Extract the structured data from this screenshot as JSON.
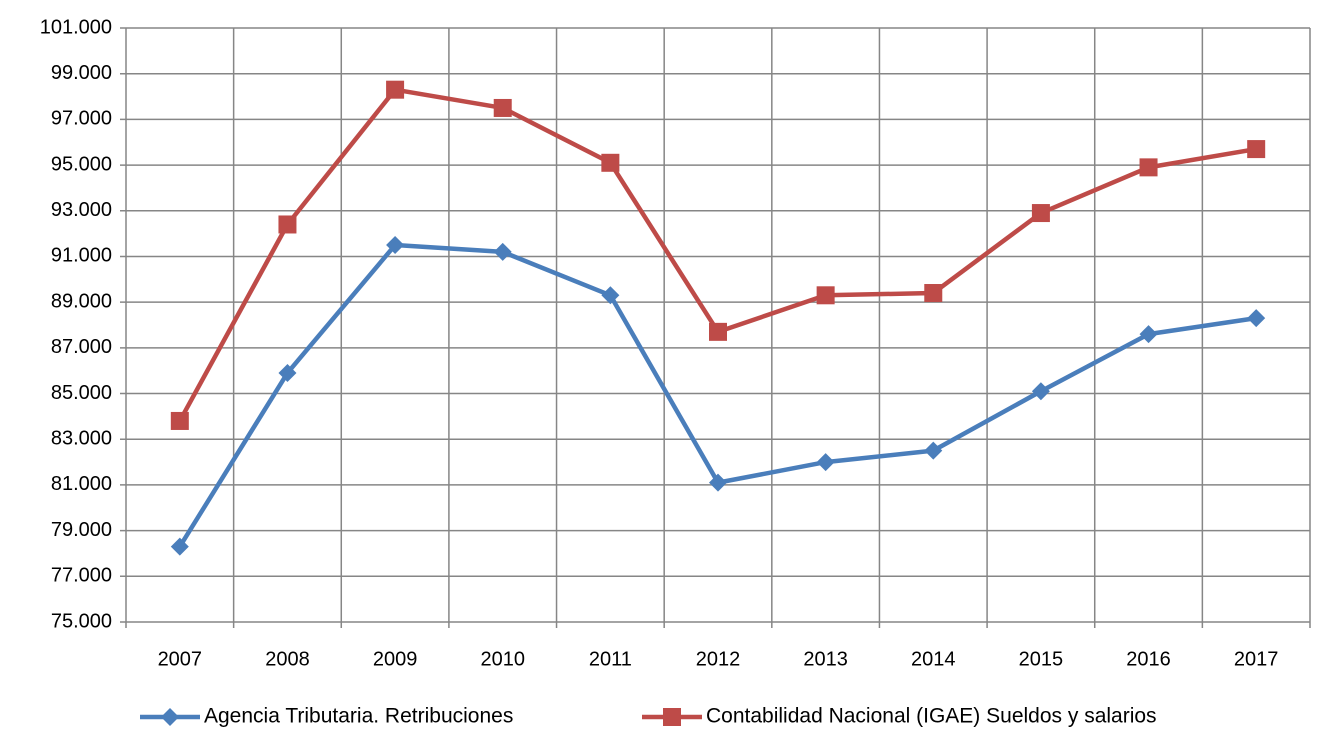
{
  "chart_data": {
    "type": "line",
    "categories": [
      "2007",
      "2008",
      "2009",
      "2010",
      "2011",
      "2012",
      "2013",
      "2014",
      "2015",
      "2016",
      "2017"
    ],
    "series": [
      {
        "name": "Agencia Tributaria. Retribuciones",
        "color": "#4a7ebb",
        "marker": "diamond",
        "values": [
          78300,
          85900,
          91500,
          91200,
          89300,
          81100,
          82000,
          82500,
          85100,
          87600,
          88300
        ]
      },
      {
        "name": "Contabilidad Nacional (IGAE) Sueldos y salarios",
        "color": "#be4b48",
        "marker": "square",
        "values": [
          83800,
          92400,
          98300,
          97500,
          95100,
          87700,
          89300,
          89400,
          92900,
          94900,
          95700
        ]
      }
    ],
    "ylim": [
      75000,
      101000
    ],
    "yticks": [
      {
        "value": 75000,
        "label": "75.000"
      },
      {
        "value": 77000,
        "label": "77.000"
      },
      {
        "value": 79000,
        "label": "79.000"
      },
      {
        "value": 81000,
        "label": "81.000"
      },
      {
        "value": 83000,
        "label": "83.000"
      },
      {
        "value": 85000,
        "label": "85.000"
      },
      {
        "value": 87000,
        "label": "87.000"
      },
      {
        "value": 89000,
        "label": "89.000"
      },
      {
        "value": 91000,
        "label": "91.000"
      },
      {
        "value": 93000,
        "label": "93.000"
      },
      {
        "value": 95000,
        "label": "95.000"
      },
      {
        "value": 97000,
        "label": "97.000"
      },
      {
        "value": 99000,
        "label": "99.000"
      },
      {
        "value": 101000,
        "label": "101.000"
      }
    ],
    "grid": true,
    "legend": "bottom"
  }
}
